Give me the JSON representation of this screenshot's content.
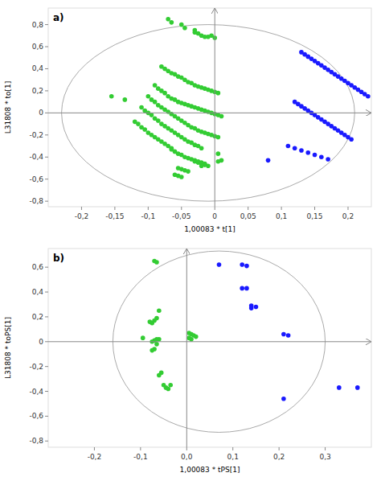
{
  "chart_data": [
    {
      "type": "scatter",
      "title": "a)",
      "xlabel": "1,00083 * t[1]",
      "ylabel": "L31808 * to[1]",
      "xlim": [
        -0.25,
        0.235
      ],
      "ylim": [
        -0.85,
        0.95
      ],
      "xticks": [
        {
          "value": -0.2,
          "label": "-0,2"
        },
        {
          "value": -0.15,
          "label": "-0,15"
        },
        {
          "value": -0.1,
          "label": "-0,1"
        },
        {
          "value": -0.05,
          "label": "-0,05"
        },
        0,
        {
          "value": 0.05,
          "label": "0,05"
        },
        {
          "value": 0.1,
          "label": "0,1"
        },
        {
          "value": 0.15,
          "label": "0,15"
        },
        {
          "value": 0.2,
          "label": "0,2"
        }
      ],
      "yticks": [
        {
          "value": -0.8,
          "label": "-0,8"
        },
        {
          "value": -0.6,
          "label": "-0,6"
        },
        {
          "value": -0.4,
          "label": "-0,4"
        },
        {
          "value": -0.2,
          "label": "-0,2"
        },
        0,
        {
          "value": 0.2,
          "label": "0,2"
        },
        {
          "value": 0.4,
          "label": "0,4"
        },
        {
          "value": 0.6,
          "label": "0,6"
        },
        {
          "value": 0.8,
          "label": "0,8"
        }
      ],
      "grid": false,
      "ellipse": {
        "cx": -0.01,
        "cy": 0.0,
        "width": 0.44,
        "height": 1.6,
        "color": "#aaaaaa"
      },
      "series": [
        {
          "color": "#33cc33",
          "x": [
            -0.07,
            -0.065,
            -0.05,
            -0.045,
            -0.03,
            -0.03,
            -0.025,
            -0.02,
            -0.015,
            -0.01,
            -0.005,
            0.0,
            -0.08,
            -0.075,
            -0.07,
            -0.065,
            -0.06,
            -0.055,
            -0.05,
            -0.045,
            -0.04,
            -0.035,
            -0.03,
            -0.025,
            -0.02,
            -0.015,
            -0.01,
            -0.005,
            0.0,
            0.005,
            -0.09,
            -0.085,
            -0.08,
            -0.075,
            -0.07,
            -0.065,
            -0.06,
            -0.055,
            -0.05,
            -0.045,
            -0.04,
            -0.035,
            -0.03,
            -0.025,
            -0.02,
            -0.015,
            -0.01,
            -0.005,
            0.0,
            0.005,
            0.01,
            -0.1,
            -0.095,
            -0.09,
            -0.085,
            -0.08,
            -0.075,
            -0.07,
            -0.065,
            -0.06,
            -0.055,
            -0.05,
            -0.045,
            -0.04,
            -0.035,
            -0.03,
            -0.025,
            -0.02,
            -0.015,
            -0.01,
            -0.005,
            0.0,
            0.005,
            -0.11,
            -0.105,
            -0.1,
            -0.095,
            -0.09,
            -0.085,
            -0.08,
            -0.075,
            -0.07,
            -0.065,
            -0.06,
            -0.055,
            -0.05,
            -0.045,
            -0.04,
            -0.035,
            -0.03,
            -0.025,
            -0.02,
            -0.12,
            -0.115,
            -0.11,
            -0.105,
            -0.1,
            -0.095,
            -0.09,
            -0.085,
            -0.08,
            -0.075,
            -0.07,
            -0.065,
            -0.155,
            -0.135,
            -0.065,
            -0.06,
            -0.055,
            -0.05,
            -0.045,
            -0.04,
            -0.035,
            -0.03,
            -0.025,
            -0.02,
            -0.015,
            -0.01,
            0.005,
            0.01,
            -0.055,
            -0.05,
            -0.045,
            -0.04,
            -0.02,
            -0.015,
            -0.06,
            -0.055,
            -0.05,
            -0.03,
            -0.025,
            -0.02,
            -0.015,
            0.005
          ],
          "values": [
            0.85,
            0.82,
            0.8,
            0.77,
            0.75,
            0.73,
            0.72,
            0.7,
            0.69,
            0.69,
            0.7,
            0.68,
            0.42,
            0.4,
            0.38,
            0.36,
            0.35,
            0.33,
            0.32,
            0.3,
            0.28,
            0.27,
            0.25,
            0.24,
            0.23,
            0.22,
            0.21,
            0.2,
            0.19,
            0.18,
            0.25,
            0.22,
            0.2,
            0.18,
            0.15,
            0.13,
            0.12,
            0.1,
            0.09,
            0.08,
            0.07,
            0.06,
            0.05,
            0.04,
            0.03,
            0.02,
            0.01,
            0.0,
            -0.01,
            -0.02,
            -0.03,
            0.15,
            0.12,
            0.1,
            0.07,
            0.05,
            0.03,
            0.01,
            -0.01,
            -0.03,
            -0.05,
            -0.07,
            -0.09,
            -0.11,
            -0.13,
            -0.14,
            -0.16,
            -0.17,
            -0.18,
            -0.19,
            -0.2,
            -0.21,
            -0.22,
            0.05,
            0.02,
            0.0,
            -0.02,
            -0.05,
            -0.07,
            -0.1,
            -0.12,
            -0.14,
            -0.16,
            -0.18,
            -0.2,
            -0.22,
            -0.24,
            -0.26,
            -0.27,
            -0.29,
            -0.3,
            -0.32,
            -0.08,
            -0.1,
            -0.13,
            -0.15,
            -0.18,
            -0.2,
            -0.22,
            -0.24,
            -0.26,
            -0.28,
            -0.3,
            -0.32,
            0.15,
            0.12,
            -0.33,
            -0.35,
            -0.37,
            -0.38,
            -0.4,
            -0.41,
            -0.42,
            -0.44,
            -0.45,
            -0.46,
            -0.47,
            -0.48,
            -0.44,
            -0.43,
            -0.5,
            -0.51,
            -0.52,
            -0.53,
            -0.48,
            -0.47,
            -0.56,
            -0.57,
            -0.58,
            -0.43,
            -0.44,
            -0.45,
            -0.46,
            -0.37
          ]
        },
        {
          "color": "#1a1aff",
          "x": [
            0.13,
            0.135,
            0.14,
            0.145,
            0.15,
            0.155,
            0.16,
            0.165,
            0.17,
            0.175,
            0.18,
            0.185,
            0.19,
            0.195,
            0.2,
            0.205,
            0.21,
            0.215,
            0.22,
            0.225,
            0.23,
            0.12,
            0.125,
            0.13,
            0.135,
            0.14,
            0.145,
            0.15,
            0.155,
            0.16,
            0.165,
            0.17,
            0.175,
            0.18,
            0.185,
            0.19,
            0.195,
            0.2,
            0.205,
            0.11,
            0.12,
            0.13,
            0.14,
            0.15,
            0.16,
            0.17,
            0.08
          ],
          "values": [
            0.55,
            0.53,
            0.51,
            0.49,
            0.47,
            0.45,
            0.43,
            0.41,
            0.39,
            0.37,
            0.35,
            0.33,
            0.31,
            0.29,
            0.27,
            0.25,
            0.23,
            0.21,
            0.19,
            0.17,
            0.15,
            0.1,
            0.08,
            0.06,
            0.04,
            0.02,
            0.0,
            -0.02,
            -0.04,
            -0.06,
            -0.08,
            -0.1,
            -0.12,
            -0.14,
            -0.16,
            -0.18,
            -0.2,
            -0.22,
            -0.24,
            -0.3,
            -0.32,
            -0.34,
            -0.36,
            -0.38,
            -0.4,
            -0.42,
            -0.43
          ]
        }
      ]
    },
    {
      "type": "scatter",
      "title": "b)",
      "xlabel": "1,00083 * tPS[1]",
      "ylabel": "L31808 * toPS[1]",
      "xlim": [
        -0.3,
        0.4
      ],
      "ylim": [
        -0.85,
        0.75
      ],
      "xticks": [
        {
          "value": -0.2,
          "label": "-0,2"
        },
        {
          "value": -0.1,
          "label": "-0,1"
        },
        {
          "value": 0.0,
          "label": "0,0"
        },
        {
          "value": 0.1,
          "label": "0,1"
        },
        {
          "value": 0.2,
          "label": "0,2"
        },
        {
          "value": 0.3,
          "label": "0,3"
        }
      ],
      "yticks": [
        {
          "value": -0.8,
          "label": "-0,8"
        },
        {
          "value": -0.6,
          "label": "-0,6"
        },
        {
          "value": -0.4,
          "label": "-0,4"
        },
        {
          "value": -0.2,
          "label": "-0,2"
        },
        0,
        {
          "value": 0.2,
          "label": "0,2"
        },
        {
          "value": 0.4,
          "label": "0,4"
        },
        {
          "value": 0.6,
          "label": "0,6"
        }
      ],
      "grid": false,
      "ellipse": {
        "cx": 0.07,
        "cy": 0.0,
        "width": 0.46,
        "height": 1.46,
        "color": "#aaaaaa"
      },
      "series": [
        {
          "color": "#33cc33",
          "x": [
            -0.07,
            -0.065,
            -0.095,
            -0.06,
            -0.065,
            -0.07,
            -0.075,
            -0.08,
            -0.06,
            -0.065,
            -0.07,
            -0.075,
            -0.055,
            -0.06,
            -0.05,
            -0.045,
            -0.04,
            -0.035,
            0.005,
            0.01,
            0.015,
            0.02,
            0.005,
            0.01,
            -0.065,
            -0.07,
            -0.075
          ],
          "values": [
            0.65,
            0.64,
            0.03,
            0.25,
            0.19,
            0.17,
            0.15,
            0.16,
            0.02,
            -0.02,
            -0.06,
            -0.07,
            -0.25,
            -0.27,
            -0.35,
            -0.37,
            -0.38,
            -0.35,
            0.07,
            0.06,
            0.05,
            0.04,
            0.03,
            0.02,
            0.02,
            0.01,
            0.0
          ]
        },
        {
          "color": "#1a1aff",
          "x": [
            0.07,
            0.12,
            0.13,
            0.12,
            0.13,
            0.14,
            0.15,
            0.14,
            0.21,
            0.22,
            0.21,
            0.33,
            0.37
          ],
          "values": [
            0.62,
            0.62,
            0.61,
            0.43,
            0.43,
            0.29,
            0.28,
            0.27,
            0.06,
            0.05,
            -0.46,
            -0.37,
            -0.37
          ]
        }
      ]
    }
  ]
}
